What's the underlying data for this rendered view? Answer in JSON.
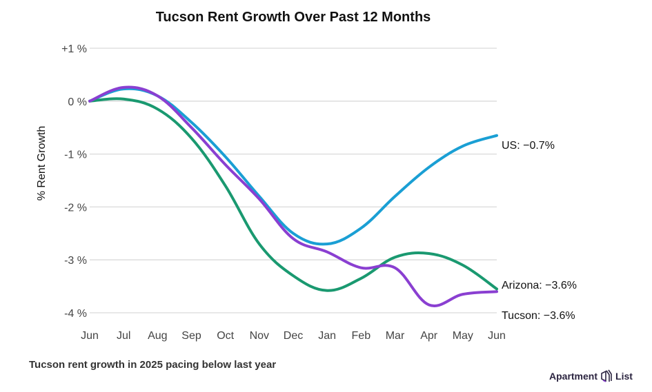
{
  "chart_data": {
    "type": "line",
    "title": "Tucson Rent Growth Over Past 12 Months",
    "subtitle": "Tucson rent growth in 2025 pacing below last year",
    "xlabel": "",
    "ylabel": "% Rent Growth",
    "ylim": [
      -4,
      1
    ],
    "yticks": [
      1,
      0,
      -1,
      -2,
      -3,
      -4
    ],
    "ytick_labels": [
      "+1 %",
      "0 %",
      "-1 %",
      "-2 %",
      "-3 %",
      "-4 %"
    ],
    "grid": true,
    "legend": "end-of-line labels (right)",
    "categories": [
      "Jun",
      "Jul",
      "Aug",
      "Sep",
      "Oct",
      "Nov",
      "Dec",
      "Jan",
      "Feb",
      "Mar",
      "Apr",
      "May",
      "Jun"
    ],
    "series": [
      {
        "name": "US",
        "color": "#1a9fd4",
        "end_label": "US: −0.7%",
        "values": [
          0,
          0.23,
          0.1,
          -0.4,
          -1.05,
          -1.8,
          -2.5,
          -2.7,
          -2.4,
          -1.8,
          -1.25,
          -0.85,
          -0.65
        ]
      },
      {
        "name": "Arizona",
        "color": "#1a9970",
        "end_label": "Arizona: −3.6%",
        "values": [
          0,
          0.04,
          -0.15,
          -0.7,
          -1.6,
          -2.7,
          -3.3,
          -3.58,
          -3.35,
          -2.95,
          -2.88,
          -3.1,
          -3.55
        ]
      },
      {
        "name": "Tucson",
        "color": "#8a3fd1",
        "end_label": "Tucson: −3.6%",
        "values": [
          0,
          0.26,
          0.1,
          -0.5,
          -1.2,
          -1.85,
          -2.6,
          -2.85,
          -3.15,
          -3.15,
          -3.85,
          -3.65,
          -3.6
        ]
      }
    ]
  },
  "brand": {
    "name_left": "Apartment",
    "name_right": "List",
    "icon": "apartment-list-logo-icon"
  }
}
